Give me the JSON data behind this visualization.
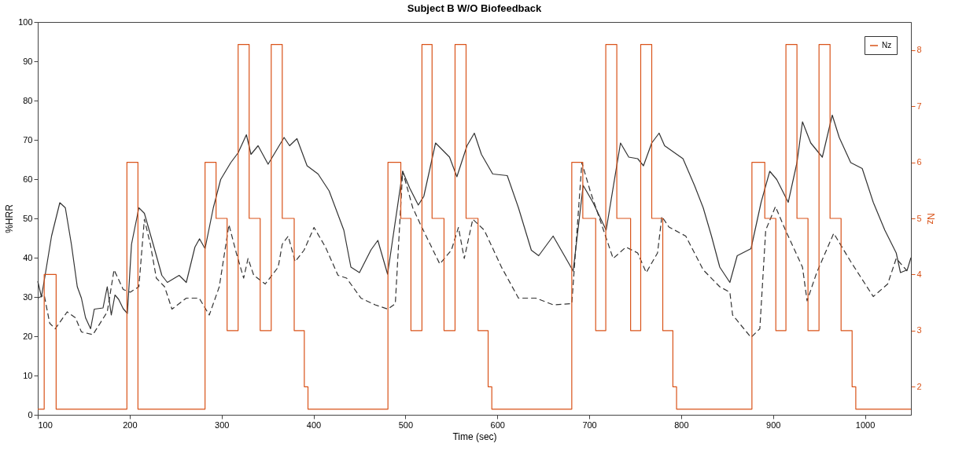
{
  "chart_data": {
    "type": "line",
    "title": "Subject B W/O Biofeedback",
    "xlabel": "Time (sec)",
    "ylabel": "%HRR",
    "y2label": "Nz",
    "xlim": [
      100,
      1050
    ],
    "xticks": [
      100,
      200,
      300,
      400,
      500,
      600,
      700,
      800,
      900,
      1000
    ],
    "ylim": [
      0,
      100
    ],
    "yticks": [
      0,
      10,
      20,
      30,
      40,
      50,
      60,
      70,
      80,
      90,
      100
    ],
    "y2lim": [
      1.5,
      8.5
    ],
    "y2ticks": [
      2,
      3,
      4,
      5,
      6,
      7,
      8
    ],
    "grid": false,
    "legend": "top right",
    "series": [
      {
        "color": "#333333",
        "line_style": "solid",
        "x": [
          100,
          104,
          108,
          115,
          124,
          130,
          136.6,
          143,
          147.5,
          152,
          157.5,
          161.5,
          171,
          175.6,
          180,
          184,
          188,
          193,
          197.5,
          202,
          210,
          216,
          225.6,
          235,
          241,
          253.8,
          261.6,
          271,
          276,
          282,
          291,
          299,
          310,
          318,
          327,
          332,
          339.7,
          350.6,
          357,
          368,
          374,
          382,
          393,
          405,
          417,
          433,
          440.7,
          450,
          462.6,
          470,
          480.6,
          497,
          504.7,
          514,
          520,
          532.8,
          548,
          556,
          567,
          575,
          582.7,
          595,
          610.8,
          623,
          637,
          645,
          660.7,
          673,
          682.5,
          693.4,
          704,
          718.4,
          734,
          743,
          752.7,
          759,
          768,
          776,
          782,
          802,
          814.5,
          824,
          833,
          842,
          853,
          861,
          876,
          887,
          896.4,
          904,
          916.5,
          926,
          932,
          941,
          953.6,
          964.4,
          972,
          984.5,
          997,
          1009,
          1021.6,
          1034,
          1038.6,
          1046,
          1050
        ],
        "values": [
          34,
          30,
          35.5,
          45.5,
          54,
          52.7,
          43.4,
          32.6,
          29.7,
          24.7,
          21.9,
          26.9,
          27.2,
          32.6,
          25.4,
          30.5,
          29.4,
          27,
          25.8,
          43.4,
          52.7,
          51.3,
          43.4,
          35.5,
          33.7,
          35.5,
          33.7,
          42.7,
          44.8,
          42.3,
          52.7,
          59.9,
          64.2,
          66.7,
          71.3,
          66.3,
          68.5,
          63.8,
          66.3,
          70.6,
          68.5,
          70.3,
          63.4,
          61.3,
          57,
          47,
          37.6,
          36.2,
          42,
          44.4,
          35.8,
          62,
          57.7,
          53.4,
          55.6,
          69.2,
          65.6,
          60.6,
          68.5,
          71.7,
          66.3,
          61.3,
          60.9,
          52.7,
          41.9,
          40.5,
          45.5,
          40.5,
          36.6,
          58.4,
          54.1,
          47,
          69.2,
          65.6,
          65.2,
          63.4,
          69.2,
          71.7,
          68.5,
          65.2,
          58.4,
          52.7,
          45.5,
          37.6,
          33.7,
          40.5,
          42.3,
          54.1,
          62,
          59.9,
          54.1,
          64.2,
          74.6,
          69.2,
          65.6,
          76.3,
          70.6,
          64.2,
          62.7,
          54.1,
          47,
          41.2,
          36.2,
          36.9,
          40
        ]
      },
      {
        "color": "#333333",
        "line_style": "dashed",
        "x": [
          100,
          107,
          113,
          119,
          132,
          141,
          147.5,
          160,
          175.6,
          183,
          193,
          200.6,
          210,
          216,
          222.5,
          229,
          238,
          246,
          253.8,
          261.6,
          275.6,
          286.6,
          297.5,
          308,
          316,
          324,
          328.8,
          335,
          347.5,
          361.6,
          366,
          372.5,
          380,
          389.7,
          400.6,
          413,
          426.7,
          436,
          451.6,
          467,
          481,
          489,
          497,
          508,
          516.5,
          537.4,
          550,
          557.7,
          564,
          573.3,
          585.8,
          604.5,
          623,
          642,
          660.7,
          681,
          692,
          701,
          726,
          740,
          752.7,
          762,
          774.3,
          779,
          786.7,
          805,
          824,
          842,
          853,
          856,
          876,
          885.6,
          892,
          902.6,
          913.5,
          932,
          937,
          947.5,
          966,
          984.5,
          1009,
          1024.7,
          1034,
          1046
        ],
        "values": [
          29.7,
          30.5,
          23.3,
          21.9,
          26.2,
          24.7,
          21.1,
          20.4,
          26.2,
          36.9,
          31.9,
          31.2,
          32.6,
          49.8,
          43.4,
          34.8,
          32.6,
          26.9,
          28.3,
          29.7,
          29.7,
          25.4,
          32.6,
          48.4,
          41.2,
          34.8,
          39.8,
          35.5,
          33.3,
          37.6,
          43.4,
          45.5,
          39,
          41.9,
          47.7,
          42.7,
          35.5,
          34.8,
          29.7,
          28,
          26.9,
          28.3,
          62,
          52.7,
          48.4,
          38.4,
          41.9,
          47.7,
          39.8,
          49.8,
          47,
          37.6,
          29.7,
          29.7,
          28,
          28.3,
          64.2,
          57,
          39.8,
          42.7,
          41.2,
          36.2,
          41.2,
          50.5,
          47.8,
          45.5,
          36.9,
          32.6,
          31.2,
          25.4,
          19.7,
          21.9,
          47,
          53,
          47,
          37.6,
          29,
          36.2,
          46.2,
          39,
          30.1,
          33.3,
          39.8,
          36.6
        ]
      },
      {
        "name": "Nz",
        "type": "step",
        "axis": "y2",
        "color": "#d95319",
        "line_style": "solid",
        "x": [
          100,
          107,
          120,
          197,
          209,
          282,
          294,
          306,
          318,
          330,
          342,
          354,
          366,
          379,
          390,
          394,
          481,
          495,
          506,
          518,
          529,
          542,
          554,
          566,
          579,
          590,
          594,
          681,
          693,
          707,
          718,
          730,
          745,
          756,
          768,
          780,
          791,
          795,
          877,
          891,
          903,
          914,
          926,
          938,
          950,
          962,
          974,
          986,
          990,
          1050
        ],
        "values": [
          1.6,
          4,
          1.6,
          6,
          1.6,
          6,
          5,
          3,
          8.1,
          5,
          3,
          8.1,
          5,
          3,
          2,
          1.6,
          6,
          5,
          3,
          8.1,
          5,
          3,
          8.1,
          5,
          3,
          2,
          1.6,
          6,
          5,
          3,
          8.1,
          5,
          3,
          8.1,
          5,
          3,
          2,
          1.6,
          6,
          5,
          3,
          8.1,
          5,
          3,
          8.1,
          5,
          3,
          2,
          1.6,
          1.6
        ]
      }
    ]
  }
}
